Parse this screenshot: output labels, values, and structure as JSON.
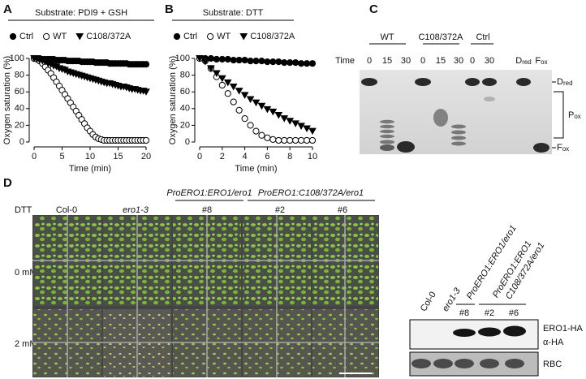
{
  "chart_data": [
    {
      "type": "scatter",
      "label": "A",
      "title": "Substrate: PDI9 + GSH",
      "xlabel": "Time (min)",
      "ylabel": "Oxygen saturation (%)",
      "x": [
        0,
        0.5,
        1,
        1.5,
        2,
        2.5,
        3,
        3.5,
        4,
        4.5,
        5,
        5.5,
        6,
        6.5,
        7,
        7.5,
        8,
        8.5,
        9,
        9.5,
        10,
        10.5,
        11,
        11.5,
        12,
        12.5,
        13,
        13.5,
        14,
        14.5,
        15,
        15.5,
        16,
        16.5,
        17,
        17.5,
        18,
        18.5,
        19,
        19.5,
        20
      ],
      "series": [
        {
          "name": "Ctrl",
          "color": "#000000",
          "marker": "circle",
          "filled": true,
          "values": [
            100,
            100,
            100,
            99,
            99,
            99,
            99,
            99,
            98,
            98,
            98,
            98,
            97,
            97,
            97,
            97,
            97,
            96,
            96,
            96,
            96,
            96,
            95,
            95,
            95,
            95,
            95,
            94,
            94,
            94,
            94,
            94,
            94,
            94,
            93,
            93,
            93,
            93,
            93,
            93,
            93
          ]
        },
        {
          "name": "WT",
          "color": "#000000",
          "marker": "circle",
          "filled": false,
          "values": [
            100,
            99,
            97,
            94,
            90,
            86,
            82,
            77,
            72,
            67,
            62,
            57,
            52,
            47,
            42,
            37,
            32,
            27,
            22,
            17,
            13,
            9,
            6,
            4,
            3,
            2,
            2,
            2,
            2,
            2,
            2,
            2,
            2,
            2,
            2,
            2,
            2,
            2,
            2,
            2,
            2
          ]
        },
        {
          "name": "C108/372A",
          "color": "#000000",
          "marker": "triangle-down",
          "filled": true,
          "values": [
            100,
            99,
            98,
            97,
            96,
            94,
            93,
            91,
            90,
            88,
            87,
            86,
            84,
            83,
            82,
            81,
            80,
            79,
            78,
            77,
            76,
            75,
            74,
            73,
            72,
            71,
            70,
            70,
            69,
            68,
            67,
            66,
            66,
            65,
            64,
            63,
            63,
            62,
            61,
            61,
            60
          ]
        }
      ],
      "xlim": [
        0,
        20
      ],
      "xticks": [
        0,
        5,
        10,
        15,
        20
      ],
      "ylim": [
        0,
        100
      ],
      "yticks": [
        0,
        20,
        40,
        60,
        80,
        100
      ]
    },
    {
      "type": "scatter",
      "label": "B",
      "title": "Substrate: DTT",
      "xlabel": "Time (min)",
      "ylabel": "Oxygen saturation (%)",
      "x": [
        0,
        0.5,
        1,
        1.5,
        2,
        2.5,
        3,
        3.5,
        4,
        4.5,
        5,
        5.5,
        6,
        6.5,
        7,
        7.5,
        8,
        8.5,
        9,
        9.5,
        10
      ],
      "series": [
        {
          "name": "Ctrl",
          "color": "#000000",
          "marker": "circle",
          "filled": true,
          "values": [
            100,
            100,
            100,
            99,
            99,
            99,
            98,
            98,
            98,
            97,
            97,
            97,
            96,
            96,
            96,
            95,
            95,
            95,
            94,
            94,
            94
          ]
        },
        {
          "name": "WT",
          "color": "#000000",
          "marker": "circle",
          "filled": false,
          "values": [
            100,
            97,
            88,
            78,
            68,
            58,
            48,
            38,
            28,
            20,
            13,
            8,
            5,
            3,
            2,
            2,
            2,
            2,
            2,
            2,
            2
          ]
        },
        {
          "name": "C108/372A",
          "color": "#000000",
          "marker": "triangle-down",
          "filled": true,
          "values": [
            100,
            96,
            88,
            82,
            76,
            71,
            66,
            61,
            56,
            51,
            47,
            43,
            39,
            36,
            32,
            28,
            25,
            22,
            19,
            16,
            13
          ]
        }
      ],
      "xlim": [
        0,
        10
      ],
      "xticks": [
        0,
        2,
        4,
        6,
        8,
        10
      ],
      "ylim": [
        0,
        100
      ],
      "yticks": [
        0,
        20,
        40,
        60,
        80,
        100
      ]
    }
  ],
  "panel_c": {
    "label": "C",
    "groups": [
      "WT",
      "C108/372A",
      "Ctrl"
    ],
    "time_label": "Time",
    "lanes": [
      "0",
      "15",
      "30",
      "0",
      "15",
      "30",
      "0",
      "30"
    ],
    "standards": [
      {
        "main": "D",
        "sub": "red"
      },
      {
        "main": "F",
        "sub": "ox"
      }
    ],
    "bands": [
      {
        "main": "D",
        "sub": "red"
      },
      {
        "main": "P",
        "sub": "ox"
      },
      {
        "main": "F",
        "sub": "ox"
      }
    ]
  },
  "panel_d": {
    "label": "D",
    "dtt_label": "DTT",
    "groups": [
      "ProERO1:ERO1/ero1",
      "ProERO1:C108/372A/ero1"
    ],
    "columns": [
      "Col-0",
      "ero1-3",
      "#8",
      "#2",
      "#6"
    ],
    "rows": [
      "0 mM",
      "2 mM"
    ],
    "blot": {
      "lanes": [
        "Col-0",
        "ero1-3"
      ],
      "constructs": [
        [
          "ProERO1:ERO1/ero1"
        ],
        [
          "ProERO1:ERO1",
          "C108/372A/ero1"
        ]
      ],
      "lines": [
        "#8",
        "#2",
        "#6"
      ],
      "labels": [
        "ERO1-HA",
        "α-HA",
        "RBC"
      ]
    }
  }
}
